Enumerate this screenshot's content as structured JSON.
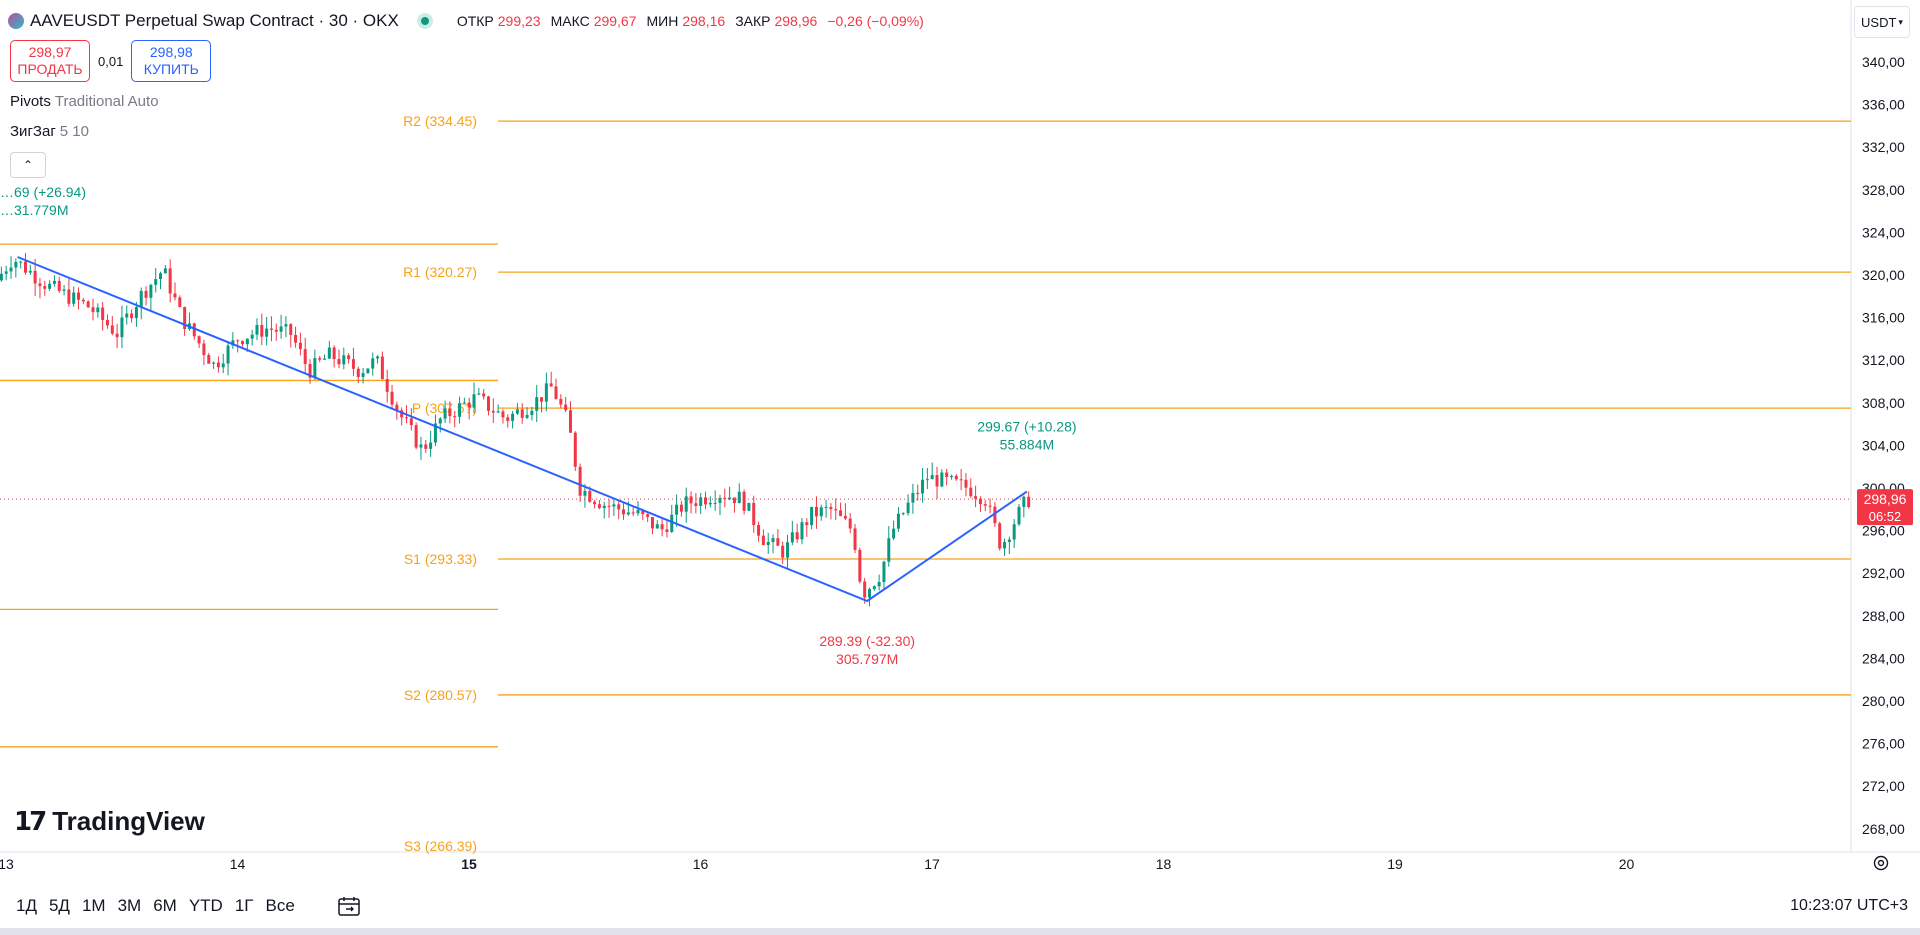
{
  "header": {
    "title": "AAVEUSDT Perpetual Swap Contract · 30 · OKX",
    "ohlc": [
      {
        "label": "ОТКР",
        "value": "299,23"
      },
      {
        "label": "МАКС",
        "value": "299,67"
      },
      {
        "label": "МИН",
        "value": "298,16"
      },
      {
        "label": "ЗАКР",
        "value": "298,96"
      }
    ],
    "change": "−0,26 (−0,09%)"
  },
  "trade": {
    "sell_price": "298,97",
    "sell_label": "ПРОДАТЬ",
    "spread": "0,01",
    "buy_price": "298,98",
    "buy_label": "КУПИТЬ"
  },
  "indicators": [
    {
      "name": "Pivots",
      "params": "Traditional Auto"
    },
    {
      "name": "ЗигЗаг",
      "params": "5 10"
    }
  ],
  "collapse_glyph": "⌃",
  "currency": {
    "label": "USDT",
    "glyph": "▾"
  },
  "logo": {
    "mark": "17",
    "text": "TradingView"
  },
  "bottom": {
    "ranges": [
      "1Д",
      "5Д",
      "1М",
      "3М",
      "6М",
      "YTD",
      "1Г",
      "Все"
    ],
    "clock": "10:23:07 UTC+3"
  },
  "colors": {
    "up": "#089981",
    "down": "#f23645",
    "pivot": "#f7a21b",
    "zigzag": "#2962ff",
    "axis_text": "#131722"
  },
  "chart_data": {
    "type": "candlestick",
    "ylim": [
      266,
      342
    ],
    "y_ticks": [
      "340,00",
      "336,00",
      "332,00",
      "328,00",
      "324,00",
      "320,00",
      "316,00",
      "312,00",
      "308,00",
      "304,00",
      "300,00",
      "296,00",
      "292,00",
      "288,00",
      "284,00",
      "280,00",
      "276,00",
      "272,00",
      "268,00"
    ],
    "x_ticks": [
      {
        "day": 13,
        "label": "13",
        "bold": false
      },
      {
        "day": 14,
        "label": "14",
        "bold": false
      },
      {
        "day": 15,
        "label": "15",
        "bold": true
      },
      {
        "day": 16,
        "label": "16",
        "bold": false
      },
      {
        "day": 17,
        "label": "17",
        "bold": false
      },
      {
        "day": 18,
        "label": "18",
        "bold": false
      },
      {
        "day": 19,
        "label": "19",
        "bold": false
      },
      {
        "day": 20,
        "label": "20",
        "bold": false
      }
    ],
    "last_price": {
      "value": 298.96,
      "label": "298,96",
      "countdown": "06:52"
    },
    "pivots_current": [
      {
        "name": "R2",
        "value": 334.45,
        "label": "R2 (334.45)"
      },
      {
        "name": "R1",
        "value": 320.27,
        "label": "R1 (320.27)"
      },
      {
        "name": "P",
        "value": 307.5,
        "label": "P (307.5?)"
      },
      {
        "name": "S1",
        "value": 293.33,
        "label": "S1 (293.33)"
      },
      {
        "name": "S2",
        "value": 280.57,
        "label": "S2 (280.57)"
      },
      {
        "name": "S3",
        "value": 266.39,
        "label": "S3 (266.39)"
      }
    ],
    "pivots_previous": [
      322.9,
      310.1,
      288.6,
      275.7
    ],
    "zigzag": [
      {
        "day": 13.05,
        "price": 321.69
      },
      {
        "day": 16.72,
        "price": 289.39
      },
      {
        "day": 17.41,
        "price": 299.67
      }
    ],
    "zigzag_labels": [
      {
        "day": 13.05,
        "price": 321.69,
        "line1": "…69 (+26.94)",
        "line2": "…31.779M",
        "color": "up"
      },
      {
        "day": 16.72,
        "price": 289.39,
        "line1": "289.39 (-32.30)",
        "line2": "305.797M",
        "color": "down"
      },
      {
        "day": 17.41,
        "price": 299.67,
        "line1": "299.67 (+10.28)",
        "line2": "55.884M",
        "color": "up"
      }
    ],
    "price_waypoints": [
      [
        12.98,
        319.5
      ],
      [
        13.05,
        321.6
      ],
      [
        13.2,
        319.0
      ],
      [
        13.38,
        317.0
      ],
      [
        13.5,
        314.5
      ],
      [
        13.6,
        318.0
      ],
      [
        13.7,
        320.5
      ],
      [
        13.78,
        316.0
      ],
      [
        13.92,
        311.5
      ],
      [
        14.02,
        314.0
      ],
      [
        14.15,
        315.0
      ],
      [
        14.25,
        314.5
      ],
      [
        14.33,
        311.0
      ],
      [
        14.42,
        312.5
      ],
      [
        14.55,
        311.0
      ],
      [
        14.62,
        312.0
      ],
      [
        14.72,
        307.0
      ],
      [
        14.82,
        303.5
      ],
      [
        14.9,
        306.5
      ],
      [
        15.05,
        308.5
      ],
      [
        15.18,
        306.5
      ],
      [
        15.3,
        308.0
      ],
      [
        15.38,
        309.5
      ],
      [
        15.45,
        306.0
      ],
      [
        15.5,
        300.0
      ],
      [
        15.6,
        298.5
      ],
      [
        15.75,
        297.5
      ],
      [
        15.85,
        296.0
      ],
      [
        15.95,
        298.5
      ],
      [
        16.1,
        299.5
      ],
      [
        16.2,
        299.0
      ],
      [
        16.3,
        295.0
      ],
      [
        16.38,
        294.0
      ],
      [
        16.5,
        297.5
      ],
      [
        16.58,
        298.0
      ],
      [
        16.68,
        296.0
      ],
      [
        16.72,
        290.0
      ],
      [
        16.8,
        292.0
      ],
      [
        16.85,
        296.0
      ],
      [
        16.92,
        298.5
      ],
      [
        17.0,
        301.0
      ],
      [
        17.1,
        300.5
      ],
      [
        17.18,
        300.0
      ],
      [
        17.25,
        299.0
      ],
      [
        17.32,
        294.5
      ],
      [
        17.38,
        297.0
      ],
      [
        17.43,
        298.9
      ]
    ]
  }
}
